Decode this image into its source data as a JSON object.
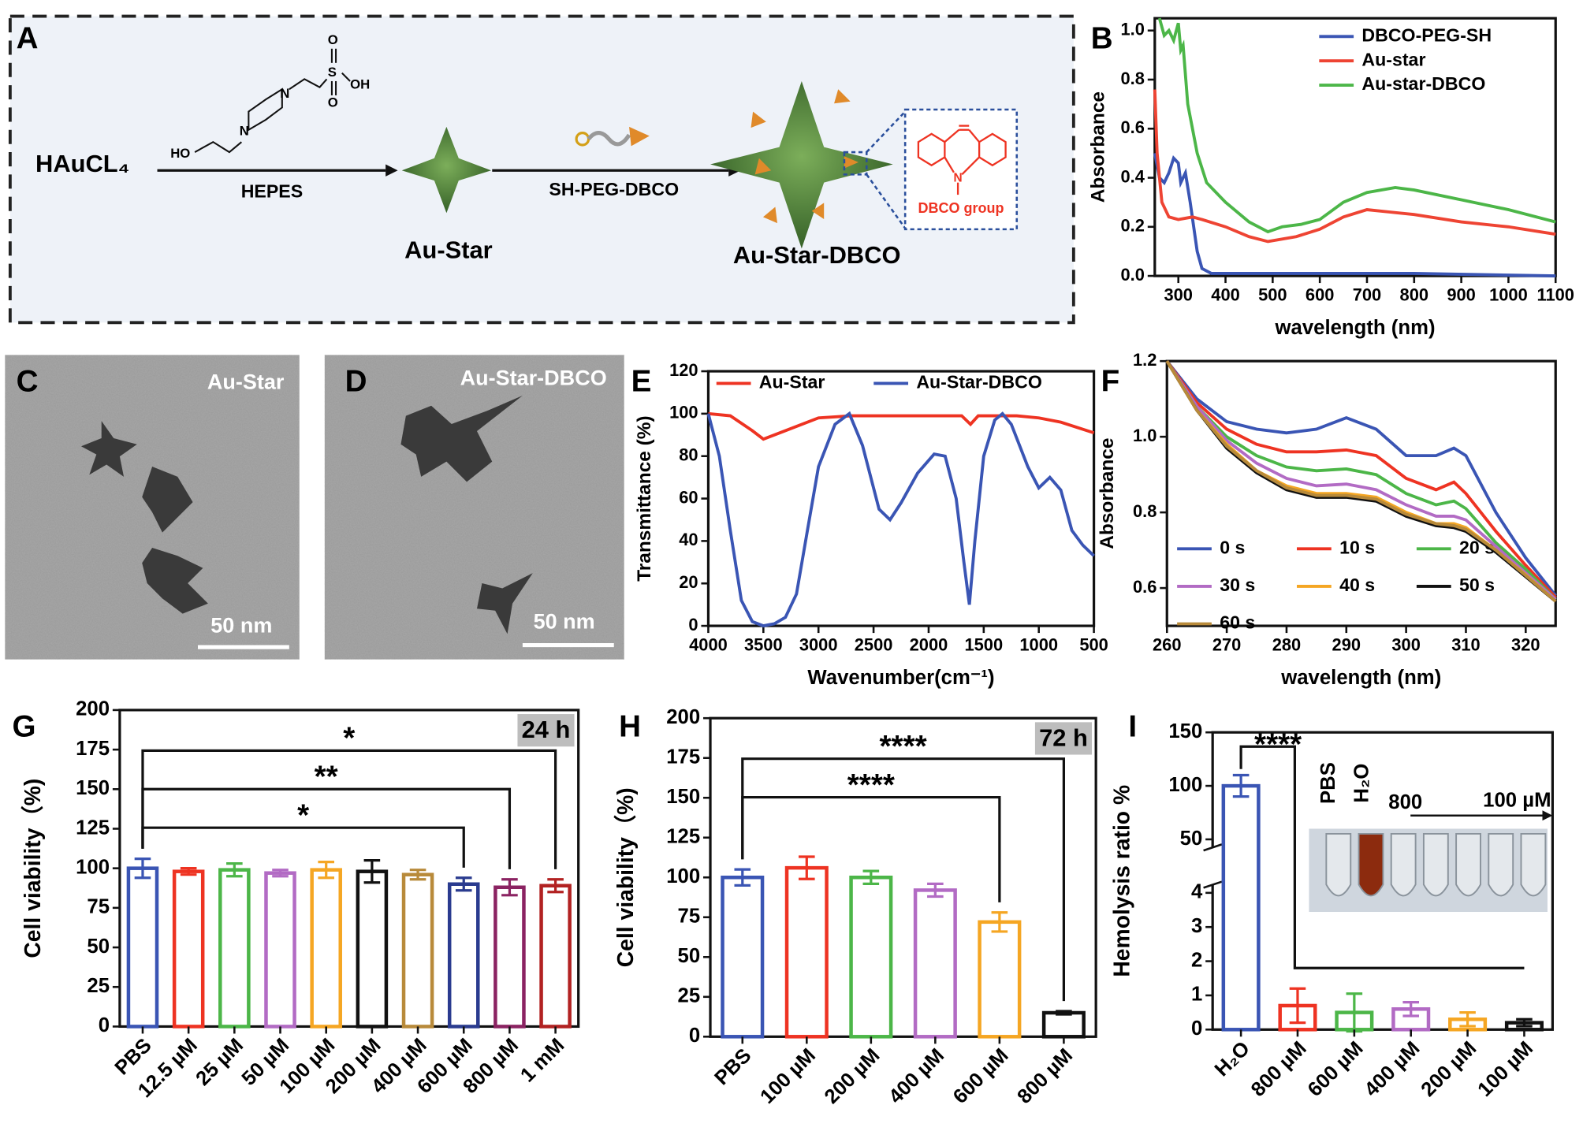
{
  "panel_a": {
    "label": "A",
    "reactant": "HAuCL₄",
    "reagent1": "HEPES",
    "product1": "Au-Star",
    "reagent2": "SH-PEG-DBCO",
    "product2": "Au-Star-DBCO",
    "inset": "DBCO group",
    "atoms": [
      "HO",
      "N",
      "N",
      "S",
      "O",
      "O",
      "OH",
      "N"
    ]
  },
  "micrographs": [
    {
      "label": "C",
      "title": "Au-Star",
      "scale": "50 nm"
    },
    {
      "label": "D",
      "title": "Au-Star-DBCO",
      "scale": "50 nm"
    }
  ],
  "chart_data": [
    {
      "type": "line",
      "panel": "B",
      "xlabel": "wavelength (nm)",
      "ylabel": "Absorbance",
      "xlim": [
        250,
        1100
      ],
      "xticks": [
        300,
        400,
        500,
        600,
        700,
        800,
        900,
        1000,
        1100
      ],
      "ylim": [
        0,
        1.05
      ],
      "yticks": [
        {
          "value": 0,
          "label": "0.0"
        },
        0.2,
        0.4,
        0.6,
        0.8,
        {
          "value": 1,
          "label": "1.0"
        }
      ],
      "legend": "upper right",
      "series": [
        {
          "name": "DBCO-PEG-SH",
          "color": "#3a55b4",
          "x": [
            250,
            260,
            270,
            280,
            290,
            300,
            305,
            315,
            325,
            340,
            350,
            370,
            400,
            600,
            800,
            1100
          ],
          "values": [
            0.5,
            0.4,
            0.38,
            0.42,
            0.48,
            0.46,
            0.38,
            0.42,
            0.3,
            0.1,
            0.03,
            0.01,
            0.01,
            0.01,
            0.01,
            0
          ]
        },
        {
          "name": "Au-star",
          "color": "#ee4433",
          "x": [
            250,
            255,
            265,
            280,
            300,
            330,
            350,
            400,
            450,
            490,
            550,
            600,
            650,
            700,
            750,
            800,
            900,
            1000,
            1100
          ],
          "values": [
            0.76,
            0.5,
            0.3,
            0.24,
            0.23,
            0.24,
            0.23,
            0.2,
            0.16,
            0.14,
            0.16,
            0.19,
            0.24,
            0.27,
            0.26,
            0.25,
            0.22,
            0.2,
            0.17
          ]
        },
        {
          "name": "Au-star-DBCO",
          "color": "#4cb648",
          "x": [
            260,
            270,
            280,
            290,
            300,
            305,
            310,
            320,
            340,
            360,
            400,
            450,
            490,
            520,
            560,
            600,
            650,
            700,
            760,
            800,
            900,
            1000,
            1100
          ],
          "values": [
            1.05,
            0.98,
            1.0,
            0.96,
            1.03,
            0.92,
            0.94,
            0.7,
            0.5,
            0.38,
            0.3,
            0.22,
            0.18,
            0.2,
            0.21,
            0.23,
            0.3,
            0.34,
            0.36,
            0.35,
            0.31,
            0.27,
            0.22
          ]
        }
      ]
    },
    {
      "type": "line",
      "panel": "E",
      "xlabel": "Wavenumber(cm⁻¹)",
      "ylabel": "Transmittance (%)",
      "xlim": [
        4000,
        500
      ],
      "xticks": [
        4000,
        3500,
        3000,
        2500,
        2000,
        1500,
        1000,
        500
      ],
      "ylim": [
        0,
        120
      ],
      "yticks": [
        0,
        20,
        40,
        60,
        80,
        100,
        120
      ],
      "legend": "upper left",
      "series": [
        {
          "name": "Au-Star",
          "color": "#ee3322",
          "x": [
            4000,
            3800,
            3600,
            3500,
            3300,
            3000,
            2700,
            2000,
            1700,
            1620,
            1550,
            1200,
            1000,
            800,
            500
          ],
          "values": [
            100,
            99,
            92,
            88,
            92,
            98,
            99,
            99,
            99,
            95,
            99,
            99,
            98,
            96,
            91
          ]
        },
        {
          "name": "Au-Star-DBCO",
          "color": "#3a55b4",
          "x": [
            4000,
            3900,
            3800,
            3700,
            3600,
            3500,
            3400,
            3300,
            3200,
            3100,
            3000,
            2850,
            2720,
            2600,
            2450,
            2350,
            2250,
            2100,
            1950,
            1850,
            1750,
            1680,
            1630,
            1580,
            1500,
            1400,
            1330,
            1250,
            1100,
            1000,
            900,
            800,
            700,
            600,
            500
          ],
          "values": [
            100,
            80,
            45,
            12,
            2,
            0,
            1,
            4,
            15,
            45,
            75,
            95,
            100,
            85,
            55,
            50,
            58,
            72,
            81,
            80,
            60,
            30,
            10,
            40,
            80,
            97,
            100,
            95,
            75,
            65,
            70,
            64,
            45,
            38,
            33
          ]
        }
      ]
    },
    {
      "type": "line",
      "panel": "F",
      "xlabel": "wavelength (nm)",
      "ylabel": "Absorbance",
      "xlim": [
        260,
        325
      ],
      "xticks": [
        260,
        270,
        280,
        290,
        300,
        310,
        320
      ],
      "ylim": [
        0.5,
        1.2
      ],
      "yticks": [
        0.6,
        0.8,
        {
          "value": 1,
          "label": "1.0"
        },
        1.2
      ],
      "legend": "lower left",
      "series": [
        {
          "name": "0 s",
          "color": "#3a55b4",
          "x": [
            260,
            265,
            270,
            275,
            280,
            285,
            290,
            295,
            300,
            305,
            308,
            310,
            315,
            320,
            325
          ],
          "values": [
            1.2,
            1.1,
            1.04,
            1.02,
            1.01,
            1.02,
            1.05,
            1.02,
            0.95,
            0.95,
            0.97,
            0.95,
            0.8,
            0.68,
            0.58
          ]
        },
        {
          "name": "10 s",
          "color": "#ee3322",
          "x": [
            260,
            265,
            270,
            275,
            280,
            285,
            290,
            295,
            300,
            305,
            308,
            310,
            315,
            320,
            325
          ],
          "values": [
            1.2,
            1.09,
            1.02,
            0.98,
            0.96,
            0.96,
            0.965,
            0.95,
            0.89,
            0.86,
            0.88,
            0.85,
            0.75,
            0.66,
            0.575
          ]
        },
        {
          "name": "20 s",
          "color": "#4cb648",
          "x": [
            260,
            265,
            270,
            275,
            280,
            285,
            290,
            295,
            300,
            305,
            308,
            310,
            315,
            320,
            325
          ],
          "values": [
            1.2,
            1.08,
            1.0,
            0.95,
            0.92,
            0.91,
            0.915,
            0.9,
            0.85,
            0.82,
            0.83,
            0.81,
            0.72,
            0.65,
            0.57
          ]
        },
        {
          "name": "30 s",
          "color": "#b26bc4",
          "x": [
            260,
            265,
            270,
            275,
            280,
            285,
            290,
            295,
            300,
            305,
            308,
            310,
            315,
            320,
            325
          ],
          "values": [
            1.2,
            1.08,
            0.99,
            0.93,
            0.89,
            0.87,
            0.875,
            0.86,
            0.82,
            0.79,
            0.79,
            0.78,
            0.71,
            0.64,
            0.57
          ]
        },
        {
          "name": "40 s",
          "color": "#f5a623",
          "x": [
            260,
            265,
            270,
            275,
            280,
            285,
            290,
            295,
            300,
            305,
            308,
            310,
            315,
            320,
            325
          ],
          "values": [
            1.2,
            1.07,
            0.98,
            0.91,
            0.87,
            0.85,
            0.85,
            0.84,
            0.8,
            0.77,
            0.77,
            0.76,
            0.7,
            0.635,
            0.565
          ]
        },
        {
          "name": "50 s",
          "color": "#111111",
          "x": [
            260,
            265,
            270,
            275,
            280,
            285,
            290,
            295,
            300,
            305,
            308,
            310,
            315,
            320,
            325
          ],
          "values": [
            1.2,
            1.07,
            0.97,
            0.905,
            0.86,
            0.84,
            0.84,
            0.83,
            0.79,
            0.765,
            0.76,
            0.75,
            0.695,
            0.63,
            0.565
          ]
        },
        {
          "name": "60 s",
          "color": "#b88a3a",
          "x": [
            260,
            265,
            270,
            275,
            280,
            285,
            290,
            295,
            300,
            305,
            308,
            310,
            315,
            320,
            325
          ],
          "values": [
            1.2,
            1.07,
            0.975,
            0.91,
            0.865,
            0.845,
            0.845,
            0.835,
            0.795,
            0.77,
            0.765,
            0.755,
            0.7,
            0.633,
            0.565
          ]
        }
      ]
    },
    {
      "type": "bar",
      "panel": "G",
      "ylabel": "Cell viability（%)",
      "categories": [
        "PBS",
        "12.5 µM",
        "25 µM",
        "50 µM",
        "100 µM",
        "200 µM",
        "400 µM",
        "600 µM",
        "800 µM",
        "1 mM"
      ],
      "values": [
        100,
        98,
        99,
        97,
        99,
        98,
        96,
        90,
        88,
        89
      ],
      "errors": [
        6,
        2,
        4,
        2,
        5,
        7,
        3,
        4,
        5,
        4
      ],
      "colors": [
        "#3a55b4",
        "#ee3322",
        "#4cb648",
        "#b26bc4",
        "#f5a623",
        "#111111",
        "#b88a3a",
        "#2a3b8f",
        "#8b2362",
        "#b22222"
      ],
      "ylim": [
        0,
        200
      ],
      "yticks": [
        0,
        25,
        50,
        75,
        100,
        125,
        150,
        175,
        200
      ],
      "badge": "24 h",
      "annotations": [
        {
          "text": "*",
          "from": "PBS",
          "to": "1 mM"
        },
        {
          "text": "**",
          "from": "PBS",
          "to": "800 µM"
        },
        {
          "text": "*",
          "from": "PBS",
          "to": "600 µM"
        }
      ]
    },
    {
      "type": "bar",
      "panel": "H",
      "ylabel": "Cell viability（%)",
      "categories": [
        "PBS",
        "100 µM",
        "200 µM",
        "400 µM",
        "600 µM",
        "800 µM"
      ],
      "values": [
        100,
        106,
        100,
        92,
        72,
        15
      ],
      "errors": [
        5,
        7,
        4,
        4,
        6,
        1
      ],
      "colors": [
        "#3a55b4",
        "#ee3322",
        "#4cb648",
        "#b26bc4",
        "#f5a623",
        "#111111"
      ],
      "ylim": [
        0,
        200
      ],
      "yticks": [
        0,
        25,
        50,
        75,
        100,
        125,
        150,
        175,
        200
      ],
      "badge": "72 h",
      "annotations": [
        {
          "text": "****",
          "from": "PBS",
          "to": "800 µM"
        },
        {
          "text": "****",
          "from": "PBS",
          "to": "600 µM"
        }
      ]
    },
    {
      "type": "bar",
      "panel": "I",
      "ylabel": "Hemolysis ratio %",
      "categories": [
        "H₂O",
        "800 µM",
        "600 µM",
        "400 µM",
        "200 µM",
        "100 µM"
      ],
      "values": [
        100,
        0.7,
        0.5,
        0.6,
        0.3,
        0.2
      ],
      "errors": [
        10,
        0.5,
        0.55,
        0.2,
        0.2,
        0.1
      ],
      "colors": [
        "#3a55b4",
        "#ee3322",
        "#4cb648",
        "#b26bc4",
        "#f5a623",
        "#111111"
      ],
      "ylim": [
        0,
        150
      ],
      "yticks": [
        0,
        1,
        2,
        3,
        4,
        50,
        100,
        150
      ],
      "ybreak": [
        4,
        50
      ],
      "annotations": [
        {
          "text": "****",
          "from": "H₂O",
          "to": "100 µM"
        }
      ],
      "inset_labels": [
        "PBS",
        "H₂O",
        "800",
        "100 µM"
      ]
    }
  ]
}
